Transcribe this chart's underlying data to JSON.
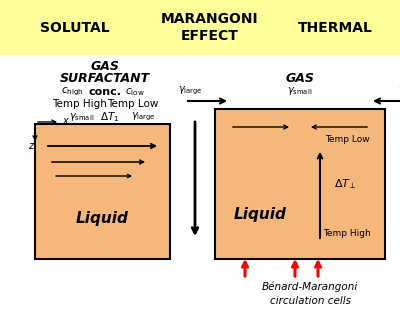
{
  "title_bar_color": "#ffff99",
  "bg_color": "#ffffff",
  "liquid_color": "#f5b87a",
  "title_left": "SOLUTAL",
  "title_center": "MARANGONI\nEFFECT",
  "title_right": "THERMAL",
  "fig_w": 4.0,
  "fig_h": 3.14,
  "dpi": 100
}
